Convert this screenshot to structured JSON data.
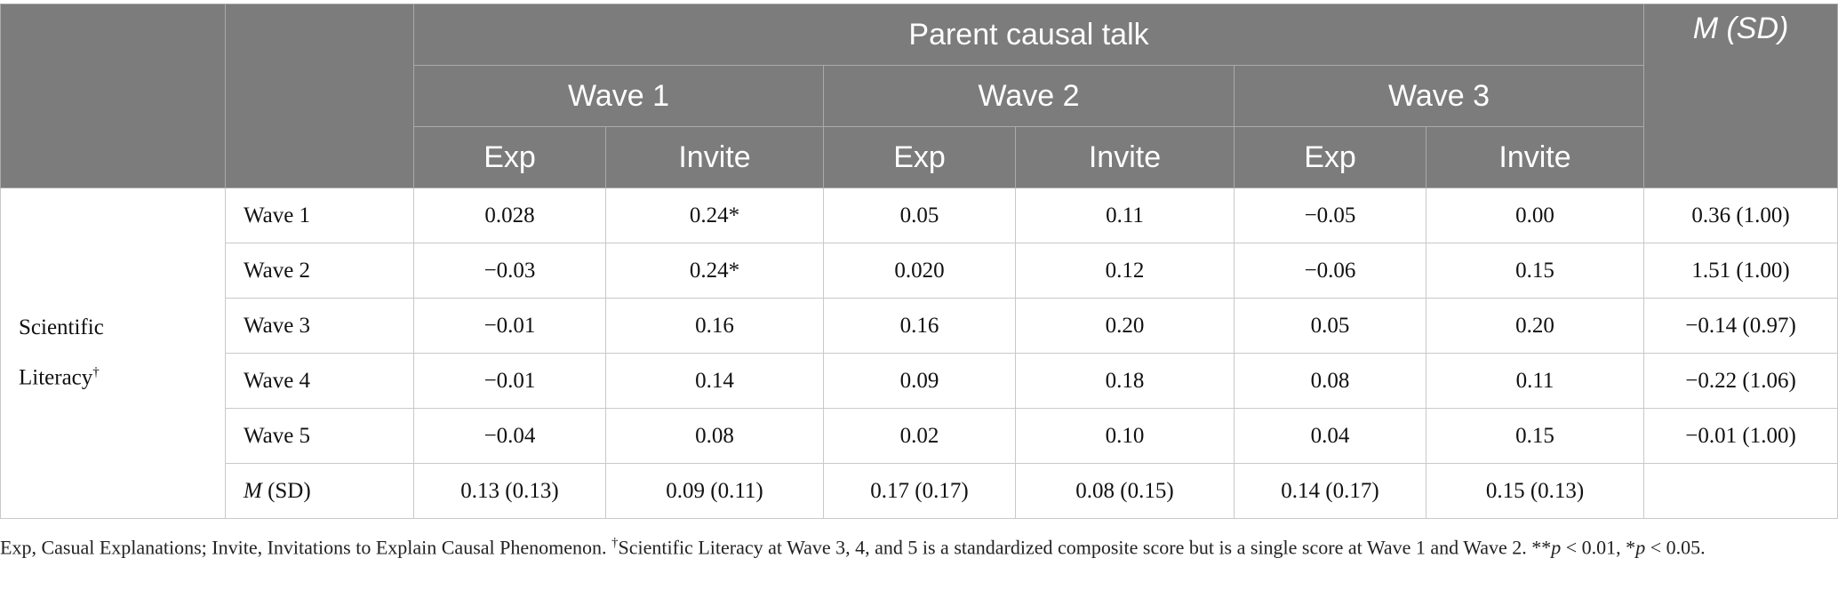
{
  "header": {
    "group": "Parent causal talk",
    "msd": "M (SD)",
    "waves": [
      "Wave 1",
      "Wave 2",
      "Wave 3"
    ],
    "sub": [
      "Exp",
      "Invite",
      "Exp",
      "Invite",
      "Exp",
      "Invite"
    ]
  },
  "group_label": {
    "line1": "Scientific",
    "line2": "Literacy",
    "dagger": "†"
  },
  "rows": [
    {
      "label": "Wave 1",
      "values": [
        "0.028",
        "0.24*",
        "0.05",
        "0.11",
        "−0.05",
        "0.00"
      ],
      "msd": "0.36 (1.00)"
    },
    {
      "label": "Wave 2",
      "values": [
        "−0.03",
        "0.24*",
        "0.020",
        "0.12",
        "−0.06",
        "0.15"
      ],
      "msd": "1.51 (1.00)"
    },
    {
      "label": "Wave 3",
      "values": [
        "−0.01",
        "0.16",
        "0.16",
        "0.20",
        "0.05",
        "0.20"
      ],
      "msd": "−0.14 (0.97)"
    },
    {
      "label": "Wave 4",
      "values": [
        "−0.01",
        "0.14",
        "0.09",
        "0.18",
        "0.08",
        "0.11"
      ],
      "msd": "−0.22 (1.06)"
    },
    {
      "label": "Wave 5",
      "values": [
        "−0.04",
        "0.08",
        "0.02",
        "0.10",
        "0.04",
        "0.15"
      ],
      "msd": "−0.01 (1.00)"
    }
  ],
  "msd_row": {
    "label_m": "M",
    "label_sd": " (SD)",
    "values": [
      "0.13 (0.13)",
      "0.09 (0.11)",
      "0.17 (0.17)",
      "0.08 (0.15)",
      "0.14 (0.17)",
      "0.15 (0.13)"
    ]
  },
  "footnote": {
    "part1": "Exp, Casual Explanations; Invite, Invitations to Explain Causal Phenomenon. ",
    "dagger": "†",
    "part2": "Scientific Literacy at Wave 3, 4, and 5 is a standardized composite score but is a single score at Wave 1 and Wave 2. **",
    "p1": "p",
    "part3": " < 0.01, *",
    "p2": "p",
    "part4": " < 0.05."
  }
}
